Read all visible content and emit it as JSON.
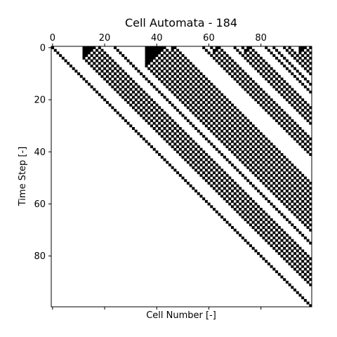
{
  "chart_data": {
    "type": "heatmap",
    "title": "Cell Automata - 184",
    "xlabel": "Cell Number [-]",
    "ylabel": "Time Step [-]",
    "x_ticks": [
      0,
      20,
      40,
      60,
      80
    ],
    "x_tick_labels": [
      "0",
      "20",
      "40",
      "60",
      "80"
    ],
    "x_tick_position": "top",
    "x_bottom_ticks_unlabeled": true,
    "y_ticks": [
      0,
      20,
      40,
      60,
      80
    ],
    "y_tick_labels": [
      "0",
      "20",
      "40",
      "60",
      "80"
    ],
    "xlim": [
      0,
      100
    ],
    "ylim": [
      100,
      0
    ],
    "rule": 184,
    "grid": false,
    "colormap": {
      "0": "#ffffff",
      "1": "#000000"
    },
    "rows": 100,
    "cols": 100,
    "initial_row": "1000000000001111101000001000000000001111111100110000000000100101100000100101100000100100010100011101"
  }
}
